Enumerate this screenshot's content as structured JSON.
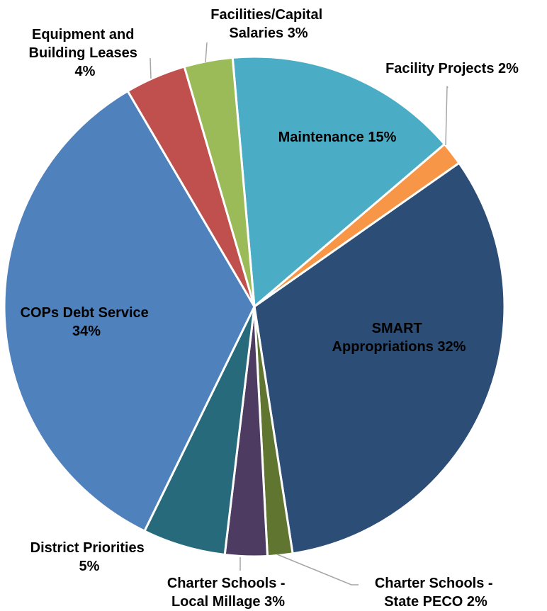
{
  "chart_data": {
    "type": "pie",
    "title": "",
    "slices": [
      {
        "label": "Maintenance  15%",
        "value": 15,
        "color": "#4bacc6"
      },
      {
        "label": "Facility Projects  2%",
        "value": 1.5,
        "color": "#f79646"
      },
      {
        "label": "SMART Appropriations 32%",
        "value": 32,
        "color": "#2c4d75"
      },
      {
        "label": "Charter Schools - State PECO 2%",
        "value": 1.6,
        "color": "#5f7530"
      },
      {
        "label": "Charter Schools - Local Millage 3%",
        "value": 2.7,
        "color": "#4d3b62"
      },
      {
        "label": "District Priorities 5%",
        "value": 5.3,
        "color": "#276a7c"
      },
      {
        "label": "COPs Debt Service 34%",
        "value": 34,
        "color": "#4f81bd"
      },
      {
        "label": "Equipment and Building Leases 4%",
        "value": 3.9,
        "color": "#c0504d"
      },
      {
        "label": "Facilities/Capital Salaries  3%",
        "value": 3.1,
        "color": "#9bbb59"
      }
    ],
    "labels": {
      "maintenance": [
        "Maintenance  15%"
      ],
      "facility_projects": [
        "Facility Projects  2%"
      ],
      "smart": [
        "SMART",
        "Appropriations 32%"
      ],
      "charter_peco": [
        "Charter Schools -",
        "State PECO 2%"
      ],
      "charter_millage": [
        "Charter Schools -",
        "Local Millage 3%"
      ],
      "district": [
        "District Priorities",
        "5%"
      ],
      "cops": [
        "COPs Debt Service",
        "34%"
      ],
      "equipment": [
        "Equipment and",
        "Building Leases",
        "4%"
      ],
      "facilities_salaries": [
        "Facilities/Capital",
        "Salaries  3%"
      ]
    },
    "legend": "none"
  }
}
